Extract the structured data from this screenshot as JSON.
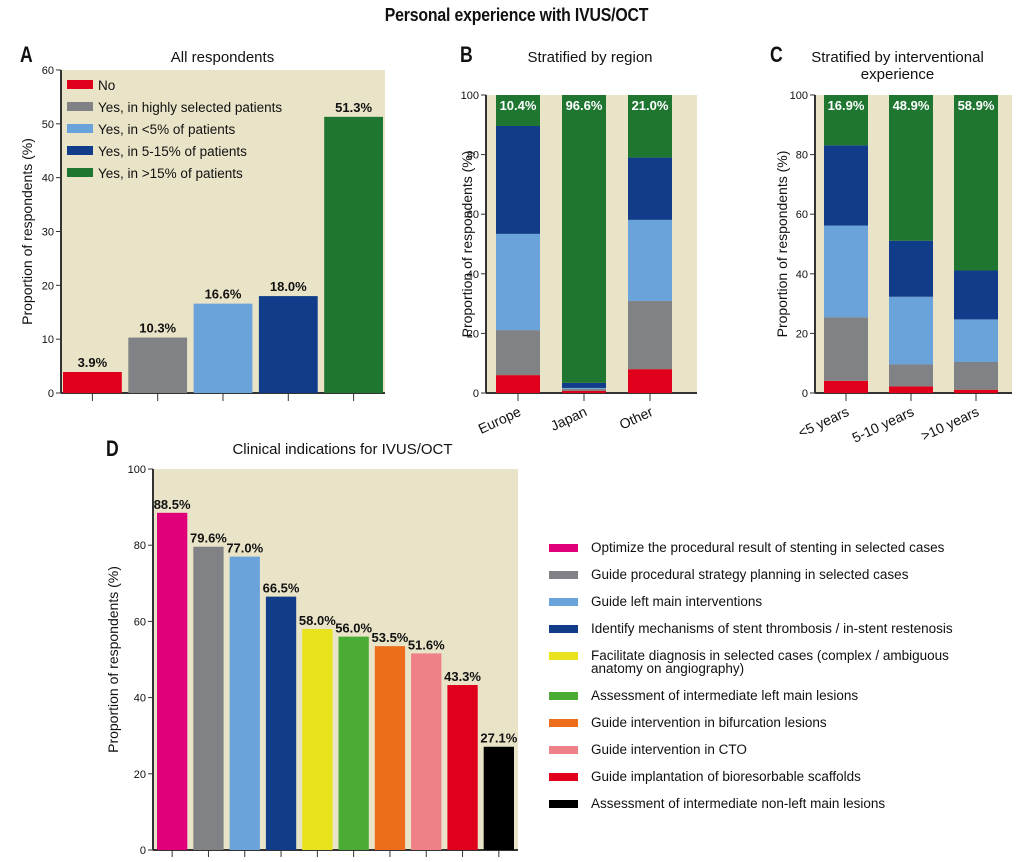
{
  "title": "Personal experience with IVUS/OCT",
  "colors": {
    "plot_bg": "#e9e4c8",
    "no": "#e0001b",
    "highly_selected": "#808285",
    "lt5": "#6aa2da",
    "5to15": "#103c89",
    "gt15": "#1e7631"
  },
  "chart_data": [
    {
      "panel": "A",
      "type": "bar",
      "title": "All respondents",
      "xlabel": "",
      "ylabel": "Proportion of respondents (%)",
      "ylim": [
        0,
        60
      ],
      "yticks": [
        0,
        10,
        20,
        30,
        40,
        50,
        60
      ],
      "categories": [
        "No",
        "Yes, in highly selected patients",
        "Yes, in <5% of patients",
        "Yes, in 5-15% of patients",
        "Yes, in >15% of patients"
      ],
      "values": [
        3.9,
        10.3,
        16.6,
        18.0,
        51.3
      ],
      "labels": [
        "3.9%",
        "10.3%",
        "16.6%",
        "18.0%",
        "51.3%"
      ],
      "colors": [
        "#e0001b",
        "#808285",
        "#6aa2da",
        "#103c89",
        "#1e7631"
      ],
      "legend": {
        "position": "top-left",
        "entries": [
          {
            "label": "No",
            "color": "#e0001b"
          },
          {
            "label": "Yes, in highly selected patients",
            "color": "#808285"
          },
          {
            "label": "Yes, in <5% of patients",
            "color": "#6aa2da"
          },
          {
            "label": "Yes, in 5-15% of patients",
            "color": "#103c89"
          },
          {
            "label": "Yes, in >15% of patients",
            "color": "#1e7631"
          }
        ]
      },
      "grid": false
    },
    {
      "panel": "B",
      "type": "bar",
      "stacked": true,
      "title": "Stratified by region",
      "xlabel": "",
      "ylabel": "Proportion of respondents (%)",
      "ylim": [
        0,
        100
      ],
      "yticks": [
        0,
        20,
        40,
        60,
        80,
        100
      ],
      "categories": [
        "Europe",
        "Japan",
        "Other"
      ],
      "series": [
        {
          "name": "No",
          "color": "#e0001b",
          "values": [
            6.0,
            0.7,
            8.0
          ]
        },
        {
          "name": "Yes, in highly selected patients",
          "color": "#808285",
          "values": [
            15.1,
            0.7,
            22.9
          ]
        },
        {
          "name": "Yes, in <5% of patients",
          "color": "#6aa2da",
          "values": [
            32.3,
            0.3,
            27.2
          ]
        },
        {
          "name": "Yes, in 5-15% of patients",
          "color": "#103c89",
          "values": [
            36.2,
            1.7,
            20.9
          ]
        },
        {
          "name": "Yes, in >15% of patients",
          "color": "#1e7631",
          "values": [
            10.4,
            96.6,
            21.0
          ]
        }
      ],
      "top_labels": [
        "10.4%",
        "96.6%",
        "21.0%"
      ],
      "grid": false
    },
    {
      "panel": "C",
      "type": "bar",
      "stacked": true,
      "title": "Stratified by interventional experience",
      "title_lines": [
        "Stratified by interventional",
        "experience"
      ],
      "xlabel": "",
      "ylabel": "Proportion of respondents (%)",
      "ylim": [
        0,
        100
      ],
      "yticks": [
        0,
        20,
        40,
        60,
        80,
        100
      ],
      "categories": [
        "<5 years",
        "5-10 years",
        ">10 years"
      ],
      "series": [
        {
          "name": "No",
          "color": "#e0001b",
          "values": [
            4.1,
            2.2,
            1.1
          ]
        },
        {
          "name": "Yes, in highly selected patients",
          "color": "#808285",
          "values": [
            21.3,
            7.4,
            9.3
          ]
        },
        {
          "name": "Yes, in <5% of patients",
          "color": "#6aa2da",
          "values": [
            30.8,
            22.7,
            14.3
          ]
        },
        {
          "name": "Yes, in 5-15% of patients",
          "color": "#103c89",
          "values": [
            26.9,
            18.8,
            16.4
          ]
        },
        {
          "name": "Yes, in >15% of patients",
          "color": "#1e7631",
          "values": [
            16.9,
            48.9,
            58.9
          ]
        }
      ],
      "top_labels": [
        "16.9%",
        "48.9%",
        "58.9%"
      ],
      "grid": false
    },
    {
      "panel": "D",
      "type": "bar",
      "title": "Clinical indications for IVUS/OCT",
      "xlabel": "",
      "ylabel": "Proportion of respondents (%)",
      "ylim": [
        0,
        100
      ],
      "yticks": [
        0,
        20,
        40,
        60,
        80,
        100
      ],
      "categories": [
        "Optimize the procedural result of stenting in selected cases",
        "Guide procedural strategy planning in selected cases",
        "Guide left main interventions",
        "Identify mechanisms of stent thrombosis / in-stent restenosis",
        "Facilitate diagnosis in selected cases (complex / ambiguous anatomy on angiography)",
        "Assessment of intermediate left main lesions",
        "Guide intervention in bifurcation lesions",
        "Guide intervention in CTO",
        "Guide implantation of bioresorbable scaffolds",
        "Assessment of intermediate non-left main lesions"
      ],
      "values": [
        88.5,
        79.6,
        77.0,
        66.5,
        58.0,
        56.0,
        53.5,
        51.6,
        43.3,
        27.1
      ],
      "labels": [
        "88.5%",
        "79.6%",
        "77.0%",
        "66.5%",
        "58.0%",
        "56.0%",
        "53.5%",
        "51.6%",
        "43.3%",
        "27.1%"
      ],
      "colors": [
        "#e0007a",
        "#808285",
        "#6aa2da",
        "#103c89",
        "#e8e31c",
        "#4aab35",
        "#ec6d1a",
        "#ee8088",
        "#e0001b",
        "#000000"
      ],
      "legend": {
        "position": "right",
        "entries": [
          {
            "lines": [
              "Optimize the procedural result of stenting in selected cases"
            ],
            "color": "#e0007a"
          },
          {
            "lines": [
              "Guide procedural strategy planning in selected cases"
            ],
            "color": "#808285"
          },
          {
            "lines": [
              "Guide left main interventions"
            ],
            "color": "#6aa2da"
          },
          {
            "lines": [
              "Identify mechanisms of stent thrombosis / in-stent restenosis"
            ],
            "color": "#103c89"
          },
          {
            "lines": [
              "Facilitate diagnosis in selected cases (complex / ambiguous",
              "anatomy on angiography)"
            ],
            "color": "#e8e31c"
          },
          {
            "lines": [
              "Assessment of intermediate left main lesions"
            ],
            "color": "#4aab35"
          },
          {
            "lines": [
              "Guide intervention in bifurcation lesions"
            ],
            "color": "#ec6d1a"
          },
          {
            "lines": [
              "Guide intervention in CTO"
            ],
            "color": "#ee8088"
          },
          {
            "lines": [
              "Guide implantation of bioresorbable scaffolds"
            ],
            "color": "#e0001b"
          },
          {
            "lines": [
              "Assessment of intermediate non-left main lesions"
            ],
            "color": "#000000"
          }
        ]
      },
      "grid": false
    }
  ],
  "panels": {
    "A": {
      "letter": "A",
      "title": "All respondents"
    },
    "B": {
      "letter": "B",
      "title": "Stratified by region"
    },
    "C": {
      "letter": "C",
      "title_line1": "Stratified by interventional",
      "title_line2": "experience"
    },
    "D": {
      "letter": "D",
      "title": "Clinical indications for IVUS/OCT"
    }
  }
}
